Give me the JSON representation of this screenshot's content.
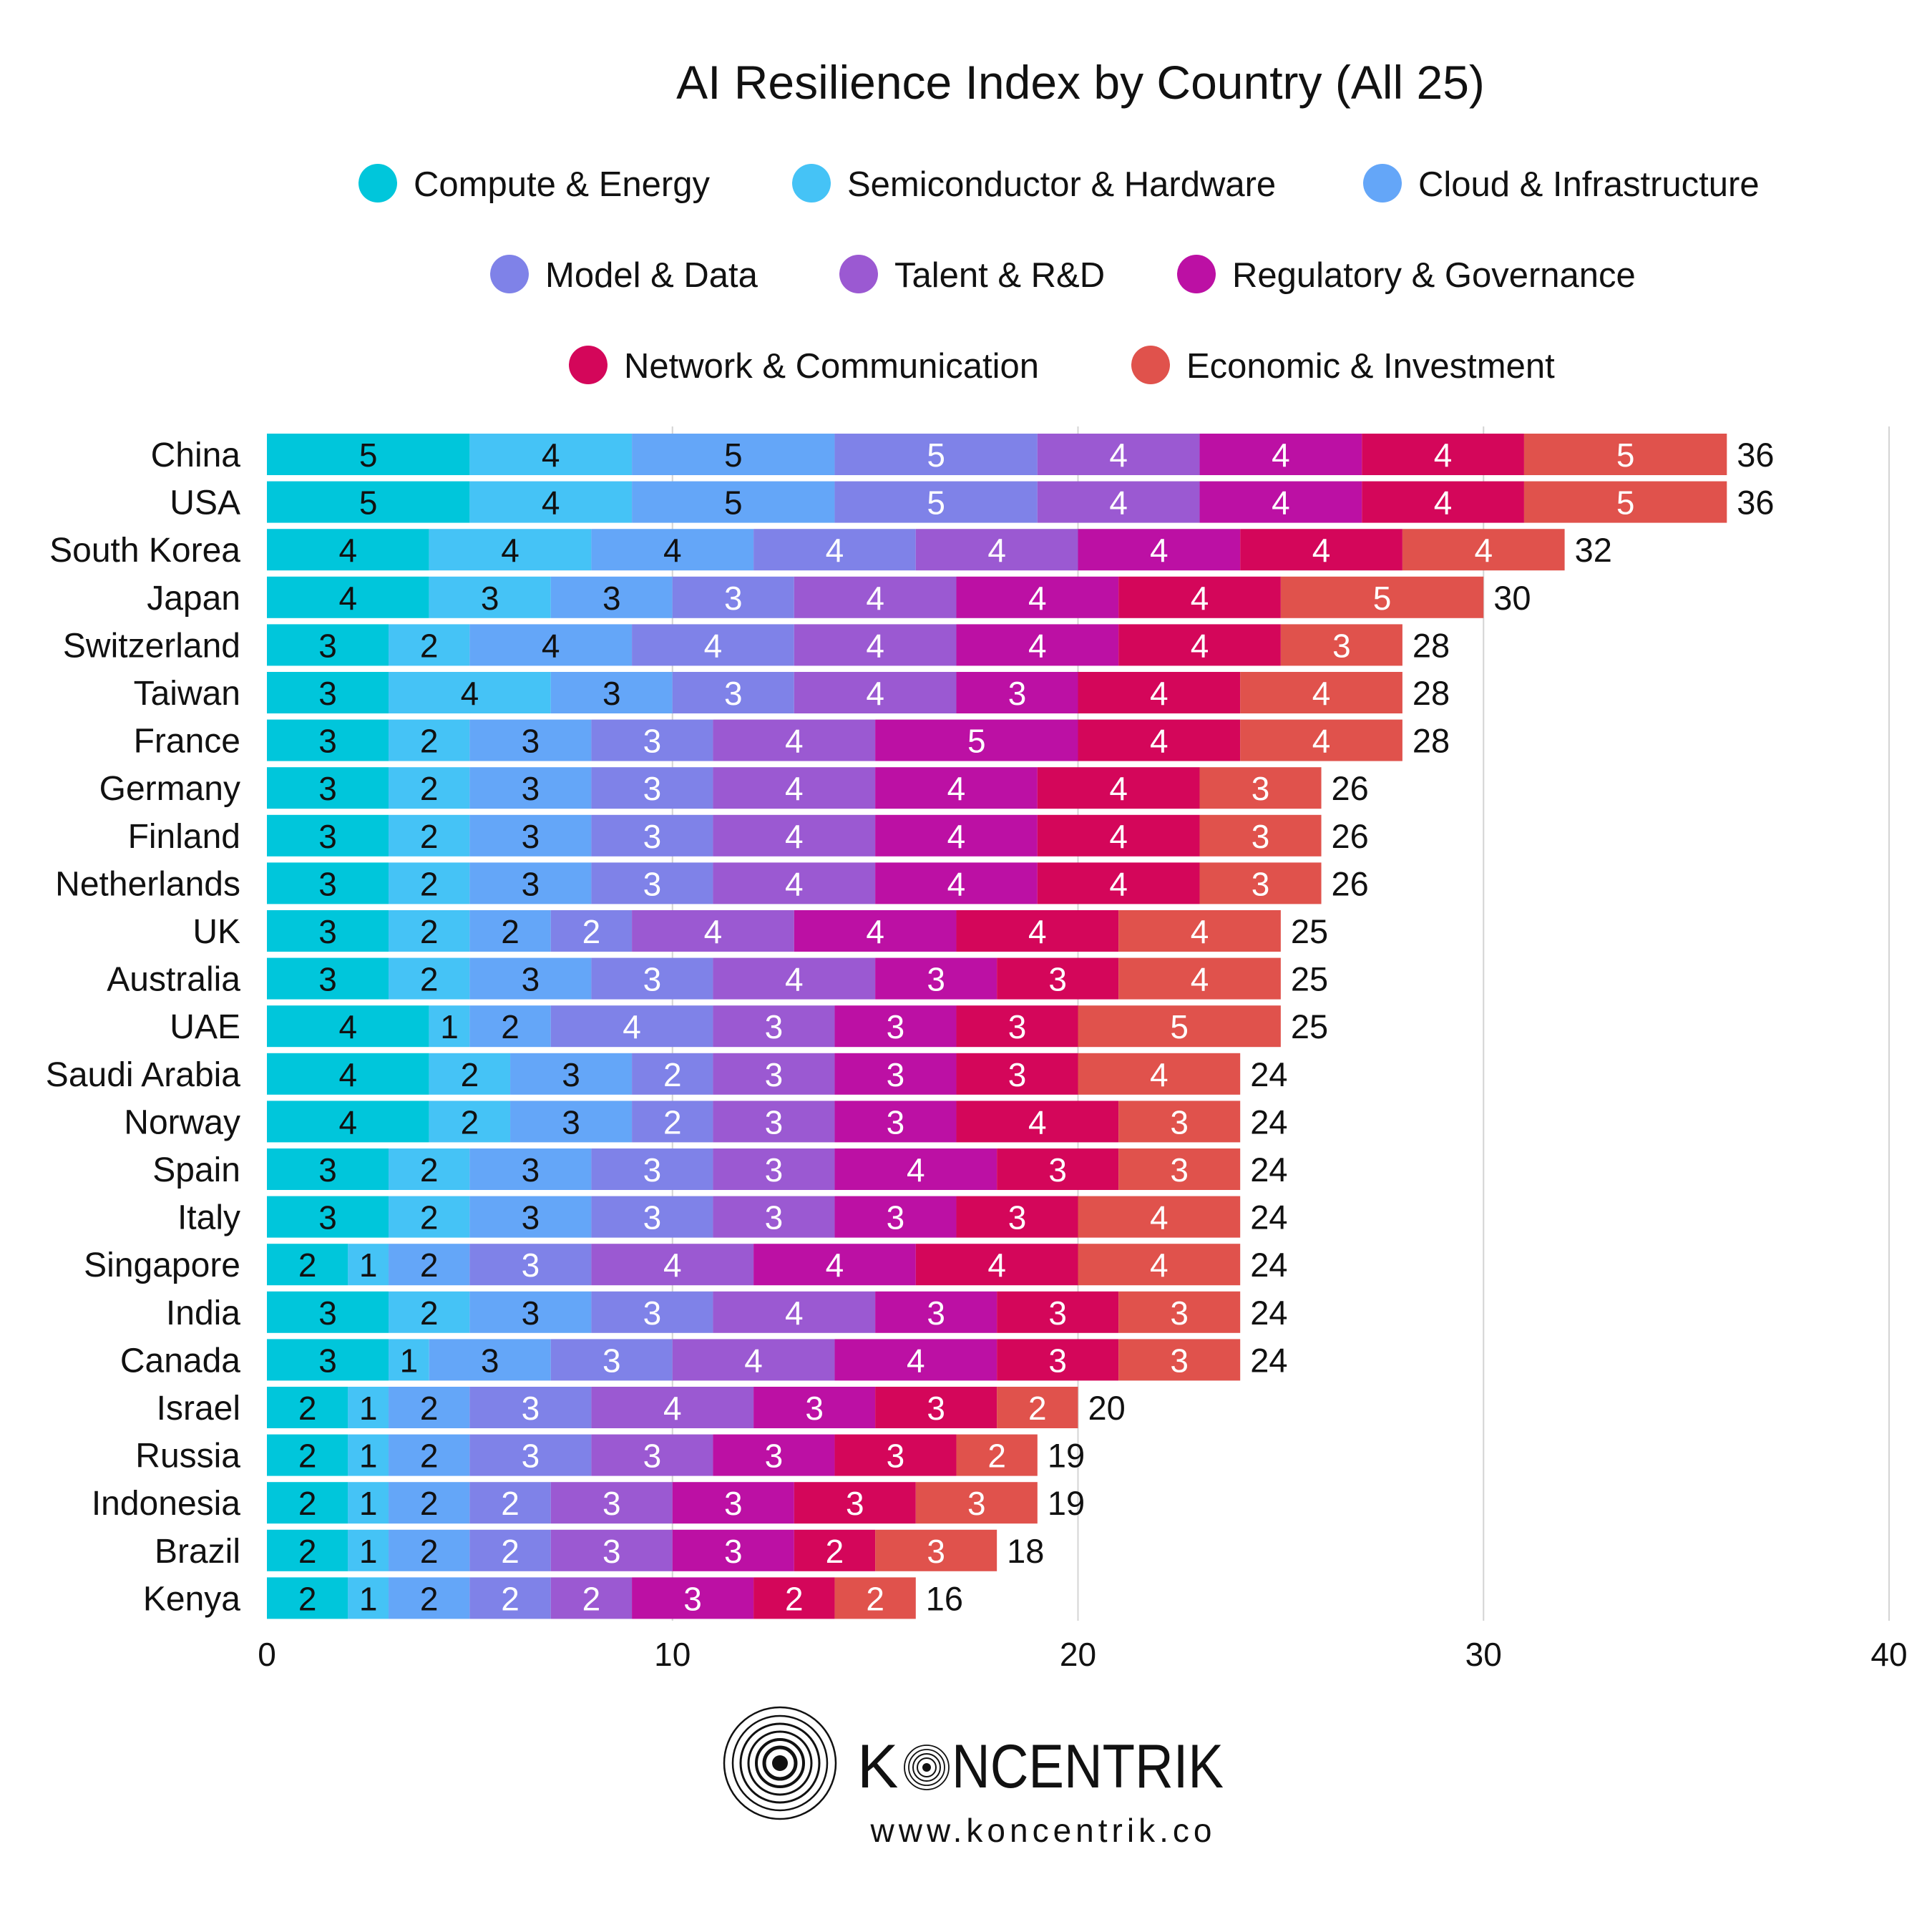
{
  "chart_data": {
    "type": "bar",
    "orientation": "horizontal",
    "stacked": true,
    "title": "AI Resilience Index by Country (All 25)",
    "xlabel": "",
    "ylabel": "",
    "xlim": [
      0,
      40
    ],
    "xticks": [
      0,
      10,
      20,
      30,
      40
    ],
    "grid": "vertical",
    "legend_position": "top",
    "categories": [
      "China",
      "USA",
      "South Korea",
      "Japan",
      "Switzerland",
      "Taiwan",
      "France",
      "Germany",
      "Finland",
      "Netherlands",
      "UK",
      "Australia",
      "UAE",
      "Saudi Arabia",
      "Norway",
      "Spain",
      "Italy",
      "Singapore",
      "India",
      "Canada",
      "Israel",
      "Russia",
      "Indonesia",
      "Brazil",
      "Kenya"
    ],
    "series": [
      {
        "name": "Compute & Energy",
        "color": "#00C6DB",
        "label_color": "#111111",
        "values": [
          5,
          5,
          4,
          4,
          3,
          3,
          3,
          3,
          3,
          3,
          3,
          3,
          4,
          4,
          4,
          3,
          3,
          2,
          3,
          3,
          2,
          2,
          2,
          2,
          2
        ]
      },
      {
        "name": "Semiconductor & Hardware",
        "color": "#45C3F6",
        "label_color": "#111111",
        "values": [
          4,
          4,
          4,
          3,
          2,
          4,
          2,
          2,
          2,
          2,
          2,
          2,
          1,
          2,
          2,
          2,
          2,
          1,
          2,
          1,
          1,
          1,
          1,
          1,
          1
        ]
      },
      {
        "name": "Cloud & Infrastructure",
        "color": "#64A6F8",
        "label_color": "#111111",
        "values": [
          5,
          5,
          4,
          3,
          4,
          3,
          3,
          3,
          3,
          3,
          2,
          3,
          2,
          3,
          3,
          3,
          3,
          2,
          3,
          3,
          2,
          2,
          2,
          2,
          2
        ]
      },
      {
        "name": "Model & Data",
        "color": "#7F82E8",
        "label_color": "#ffffff",
        "values": [
          5,
          5,
          4,
          3,
          4,
          3,
          3,
          3,
          3,
          3,
          2,
          3,
          4,
          2,
          2,
          3,
          3,
          3,
          3,
          3,
          3,
          3,
          2,
          2,
          2
        ]
      },
      {
        "name": "Talent & R&D",
        "color": "#9B59D2",
        "label_color": "#ffffff",
        "values": [
          4,
          4,
          4,
          4,
          4,
          4,
          4,
          4,
          4,
          4,
          4,
          4,
          3,
          3,
          3,
          3,
          3,
          4,
          4,
          4,
          4,
          3,
          3,
          3,
          2
        ]
      },
      {
        "name": "Regulatory & Governance",
        "color": "#BC10A4",
        "label_color": "#ffffff",
        "values": [
          4,
          4,
          4,
          4,
          4,
          3,
          5,
          4,
          4,
          4,
          4,
          3,
          3,
          3,
          3,
          4,
          3,
          4,
          3,
          4,
          3,
          3,
          3,
          3,
          3
        ]
      },
      {
        "name": "Network & Communication",
        "color": "#D4065A",
        "label_color": "#ffffff",
        "values": [
          4,
          4,
          4,
          4,
          4,
          4,
          4,
          4,
          4,
          4,
          4,
          3,
          3,
          3,
          4,
          3,
          3,
          4,
          3,
          3,
          3,
          3,
          3,
          2,
          2
        ]
      },
      {
        "name": "Economic & Investment",
        "color": "#E0524C",
        "label_color": "#ffffff",
        "values": [
          5,
          5,
          4,
          5,
          3,
          4,
          4,
          3,
          3,
          3,
          4,
          4,
          5,
          4,
          3,
          3,
          4,
          4,
          3,
          3,
          2,
          2,
          3,
          3,
          2
        ]
      }
    ],
    "totals": [
      36,
      36,
      32,
      30,
      28,
      28,
      28,
      26,
      26,
      26,
      25,
      25,
      25,
      24,
      24,
      24,
      24,
      24,
      24,
      24,
      20,
      19,
      19,
      18,
      16
    ]
  },
  "branding": {
    "name_left": "K",
    "name_right": "NCENTRIK",
    "url": "www.koncentrik.co"
  }
}
